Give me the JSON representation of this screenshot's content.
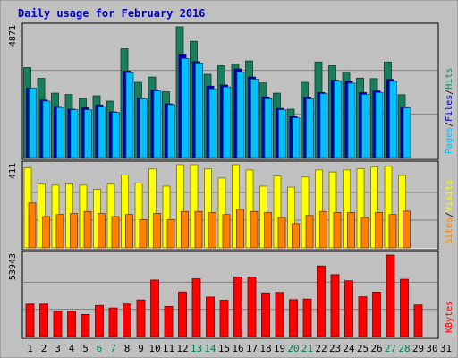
{
  "chart_data": {
    "type": "bar",
    "title": "Daily usage for February 2016",
    "categories": [
      "1",
      "2",
      "3",
      "4",
      "5",
      "6",
      "7",
      "8",
      "9",
      "10",
      "11",
      "12",
      "13",
      "14",
      "15",
      "16",
      "17",
      "18",
      "19",
      "20",
      "21",
      "22",
      "23",
      "24",
      "25",
      "26",
      "27",
      "28",
      "29",
      "30",
      "31"
    ],
    "weekend_days": [
      "6",
      "7",
      "13",
      "14",
      "20",
      "21",
      "27",
      "28"
    ],
    "panels": [
      {
        "id": "hits",
        "ymax_label": "4871",
        "ymax": 4871,
        "legend": [
          "Pages",
          "/",
          "Files",
          "/",
          "Hits"
        ],
        "series": [
          {
            "name": "Hits",
            "color": "#1a7e5e",
            "values": [
              3350,
              2950,
              2400,
              2350,
              2200,
              2300,
              2100,
              4050,
              2800,
              3000,
              2450,
              4871,
              4330,
              3100,
              3420,
              3480,
              3600,
              2780,
              2400,
              1800,
              2800,
              3560,
              3420,
              3190,
              2960,
              2940,
              3560,
              2340,
              0,
              0,
              0
            ]
          },
          {
            "name": "Files",
            "color": "#0000c0",
            "values": [
              2590,
              2140,
              1900,
              1800,
              1850,
              1960,
              1700,
              3220,
              2210,
              2520,
              2000,
              3850,
              3570,
              2660,
              2700,
              3300,
              3000,
              2260,
              1830,
              1520,
              2250,
              2420,
              2880,
              2850,
              2420,
              2480,
              2910,
              1890,
              0,
              0,
              0
            ]
          },
          {
            "name": "Pages",
            "color": "#00c0ff",
            "values": [
              2590,
              2100,
              1860,
              1780,
              1780,
              1900,
              1680,
              3160,
              2190,
              2480,
              1970,
              3690,
              3520,
              2560,
              2630,
              3190,
              2920,
              2190,
              1780,
              1480,
              2180,
              2380,
              2850,
              2770,
              2350,
              2420,
              2840,
              1850,
              0,
              0,
              0
            ]
          }
        ]
      },
      {
        "id": "visits",
        "ymax_label": "411",
        "ymax": 411,
        "legend": [
          "Sites",
          "/",
          "Visits"
        ],
        "series": [
          {
            "name": "Visits",
            "color": "#ffff00",
            "values": [
              395,
              315,
              310,
              315,
              310,
              290,
              315,
              360,
              320,
              390,
              305,
              411,
              411,
              390,
              345,
              411,
              385,
              305,
              355,
              300,
              350,
              385,
              375,
              385,
              391,
              400,
              403,
              358,
              0,
              0,
              0
            ]
          },
          {
            "name": "Sites",
            "color": "#ff8000",
            "values": [
              222,
              155,
              165,
              170,
              180,
              170,
              155,
              165,
              140,
              170,
              140,
              180,
              180,
              175,
              165,
              190,
              180,
              175,
              150,
              120,
              160,
              180,
              175,
              175,
              150,
              175,
              165,
              182,
              0,
              0,
              0
            ]
          }
        ]
      },
      {
        "id": "kbytes",
        "ymax_label": "53943",
        "ymax": 53943,
        "legend": [
          "KBytes"
        ],
        "series": [
          {
            "name": "KBytes",
            "color": "#ff0000",
            "values": [
              21500,
              21500,
              16600,
              16700,
              14600,
              20600,
              18900,
              21500,
              24200,
              37400,
              19900,
              29500,
              38200,
              26100,
              24000,
              39400,
              39400,
              28900,
              29200,
              24400,
              24800,
              46700,
              41000,
              36900,
              26300,
              29400,
              53943,
              37900,
              20900,
              0,
              0
            ]
          }
        ]
      }
    ]
  }
}
